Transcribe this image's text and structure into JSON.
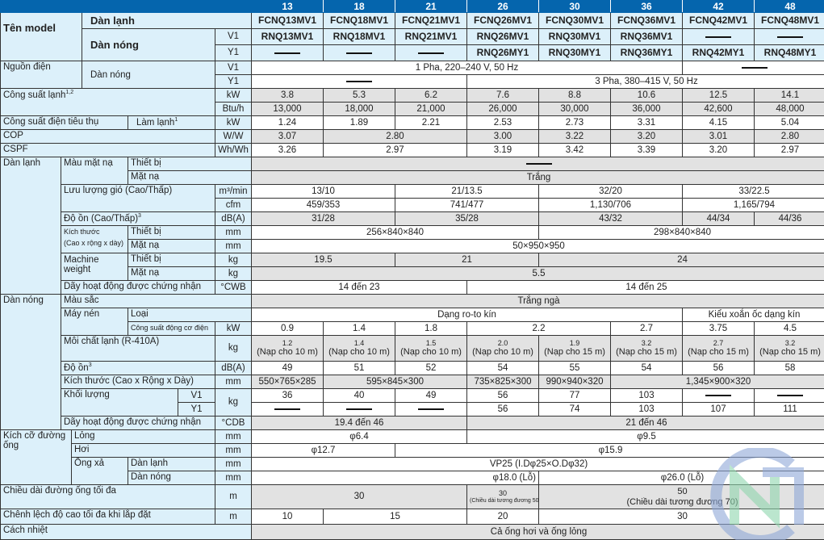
{
  "capacities": [
    "13",
    "18",
    "21",
    "26",
    "30",
    "36",
    "42",
    "48"
  ],
  "labels": {
    "model_name": "Tên model",
    "indoor": "Dàn lạnh",
    "outdoor": "Dàn nóng",
    "v1": "V1",
    "y1": "Y1",
    "power_supply": "Nguồn điện",
    "cooling_capacity": "Công suất lạnh",
    "cooling_capacity_sup": "1,2",
    "power_input": "Công suất điện tiêu thụ",
    "cooling": "Làm lạnh",
    "cooling_sup": "1",
    "cop": "COP",
    "cspf": "CSPF",
    "panel_color": "Màu mặt nạ",
    "unit": "Thiết bị",
    "panel": "Mặt nạ",
    "airflow": "Lưu lượng gió (Cao/Thấp)",
    "noise_hl": "Độ ồn (Cao/Thấp)",
    "noise_sup": "3",
    "dimensions_small": "Kích thước",
    "dimensions_small2": "(Cao x rộng x dày)",
    "machine_weight": "Machine",
    "machine_weight2": "weight",
    "operating_range": "Dãy hoạt động được chứng nhận",
    "casing_color": "Màu sắc",
    "compressor": "Máy nén",
    "type": "Loại",
    "motor_output": "Công suất động cơ điện",
    "refrigerant": "Môi chất lạnh (R-410A)",
    "noise": "Độ ồn",
    "dimensions": "Kích thước (Cao x Rộng x Dày)",
    "weight": "Khối lượng",
    "piping": "Kích cỡ đường",
    "piping2": "ống",
    "liquid": "Lỏng",
    "gas": "Hơi",
    "drain": "Ống xả",
    "max_length": "Chiều dài đường ống tối đa",
    "max_height": "Chênh lệch độ cao tối đa khi lắp đặt",
    "insulation": "Cách nhiệt"
  },
  "units": {
    "kw": "kW",
    "btuh": "Btu/h",
    "ww": "W/W",
    "whwh": "Wh/Wh",
    "m3min": "m³/min",
    "cfm": "cfm",
    "dba": "dB(A)",
    "mm": "mm",
    "kg": "kg",
    "cwb": "°CWB",
    "cdb": "°CDB",
    "m": "m"
  },
  "dash": "—",
  "indoor_models": [
    "FCNQ13MV1",
    "FCNQ18MV1",
    "FCNQ21MV1",
    "FCNQ26MV1",
    "FCNQ30MV1",
    "FCNQ36MV1",
    "FCNQ42MV1",
    "FCNQ48MV1"
  ],
  "outdoor_v1_models": [
    "RNQ13MV1",
    "RNQ18MV1",
    "RNQ21MV1",
    "RNQ26MV1",
    "RNQ30MV1",
    "RNQ36MV1",
    "—",
    "—"
  ],
  "outdoor_y1_models": [
    "—",
    "—",
    "—",
    "RNQ26MY1",
    "RNQ30MY1",
    "RNQ36MY1",
    "RNQ42MY1",
    "RNQ48MY1"
  ],
  "power_v1": "1 Pha, 220–240 V, 50 Hz",
  "power_y1": "3 Pha, 380–415 V, 50 Hz",
  "cooling_kw": [
    "3.8",
    "5.3",
    "6.2",
    "7.6",
    "8.8",
    "10.6",
    "12.5",
    "14.1"
  ],
  "cooling_btu": [
    "13,000",
    "18,000",
    "21,000",
    "26,000",
    "30,000",
    "36,000",
    "42,600",
    "48,000"
  ],
  "power_input_kw": [
    "1.24",
    "1.89",
    "2.21",
    "2.53",
    "2.73",
    "3.31",
    "4.15",
    "5.04"
  ],
  "cop": [
    "3.07",
    "2.80",
    "3.00",
    "3.22",
    "3.20",
    "3.01",
    "2.80"
  ],
  "cspf": [
    "3.26",
    "2.97",
    "3.19",
    "3.42",
    "3.39",
    "3.20",
    "2.97"
  ],
  "indoor": {
    "panel_color_unit": "—",
    "panel_color_panel": "Trắng",
    "airflow_m3": [
      "13/10",
      "21/13.5",
      "32/20",
      "33/22.5"
    ],
    "airflow_cfm": [
      "459/353",
      "741/477",
      "1,130/706",
      "1,165/794"
    ],
    "noise": [
      "31/28",
      "35/28",
      "43/32",
      "44/34",
      "44/36"
    ],
    "dim_unit": [
      "256×840×840",
      "298×840×840"
    ],
    "dim_panel": "50×950×950",
    "weight_unit": [
      "19.5",
      "21",
      "24"
    ],
    "weight_panel": "5.5",
    "range": [
      "14 đến 23",
      "14 đến 25"
    ]
  },
  "outdoor": {
    "color": "Trắng ngà",
    "comp_type": [
      "Dạng ro-to kín",
      "Kiểu xoắn ốc dạng kín"
    ],
    "motor": [
      "0.9",
      "1.4",
      "1.8",
      "2.2",
      "2.7",
      "3.75",
      "4.5"
    ],
    "refrigerant": [
      {
        "kg": "1.2",
        "note": "(Nạp cho 10 m)"
      },
      {
        "kg": "1.4",
        "note": "(Nạp cho 10 m)"
      },
      {
        "kg": "1.5",
        "note": "(Nạp cho 10 m)"
      },
      {
        "kg": "2.0",
        "note": "(Nạp cho 10 m)"
      },
      {
        "kg": "1.9",
        "note": "(Nạp cho 15 m)"
      },
      {
        "kg": "3.2",
        "note": "(Nạp cho 15 m)"
      },
      {
        "kg": "2.7",
        "note": "(Nạp cho 15 m)"
      },
      {
        "kg": "3.2",
        "note": "(Nạp cho 15 m)"
      }
    ],
    "noise": [
      "49",
      "51",
      "52",
      "54",
      "55",
      "54",
      "56",
      "58"
    ],
    "dims": [
      "550×765×285",
      "595×845×300",
      "735×825×300",
      "990×940×320",
      "1,345×900×320"
    ],
    "weight_v1": [
      "36",
      "40",
      "49",
      "56",
      "77",
      "103",
      "—",
      "—"
    ],
    "weight_y1": [
      "—",
      "—",
      "—",
      "56",
      "74",
      "103",
      "107",
      "111"
    ],
    "range": [
      "19.4 đến 46",
      "21 đến  46"
    ]
  },
  "piping": {
    "liquid": [
      "φ6.4",
      "φ9.5"
    ],
    "gas": [
      "φ12.7",
      "φ15.9"
    ],
    "drain_indoor": "VP25 (I.Dφ25×O.Dφ32)",
    "drain_outdoor": [
      "φ18.0 (Lỗ)",
      "φ26.0 (Lỗ)"
    ]
  },
  "max_length": [
    {
      "main": "30",
      "note": ""
    },
    {
      "main": "30",
      "note": "(Chiều dài tương đương 50)"
    },
    {
      "main": "50",
      "note": "(Chiều dài tương đương 70)"
    }
  ],
  "max_height": [
    "10",
    "15",
    "20",
    "30"
  ],
  "insulation": "Cả ống hơi và ống lỏng",
  "colors": {
    "header": "#0565ad",
    "label_bg": "#dcf0fa",
    "shaded": "#e2e2e2"
  }
}
